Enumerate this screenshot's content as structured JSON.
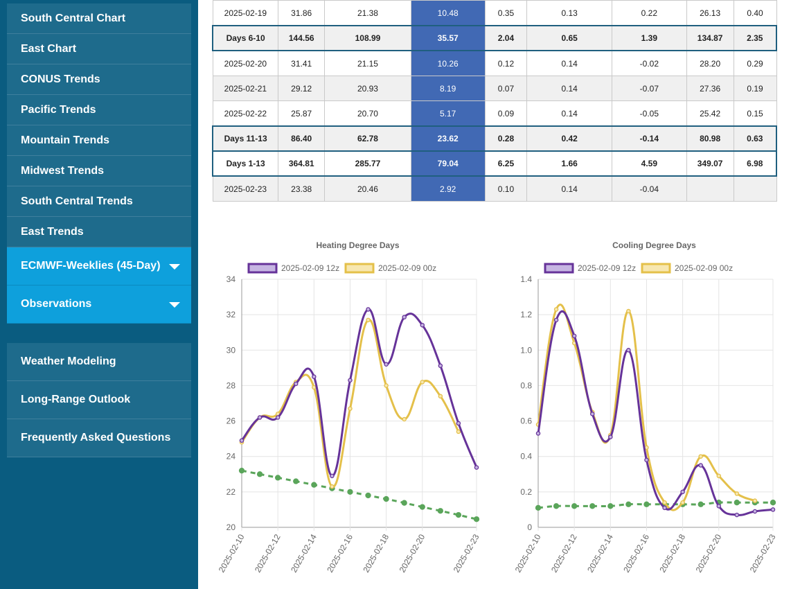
{
  "sidebar": {
    "items": [
      {
        "label": "South Central Chart"
      },
      {
        "label": "East Chart"
      },
      {
        "label": "CONUS Trends"
      },
      {
        "label": "Pacific Trends"
      },
      {
        "label": "Mountain Trends"
      },
      {
        "label": "Midwest Trends"
      },
      {
        "label": "South Central Trends"
      },
      {
        "label": "East Trends"
      },
      {
        "label": "ECMWF-Weeklies (45-Day)"
      },
      {
        "label": "Observations"
      }
    ],
    "bottom_items": [
      {
        "label": "Weather Modeling"
      },
      {
        "label": "Long-Range Outlook"
      },
      {
        "label": "Frequently Asked Questions"
      }
    ]
  },
  "table": {
    "rows": [
      {
        "kind": "odd",
        "cells": [
          "2025-02-19",
          "31.86",
          "21.38",
          "10.48",
          "0.35",
          "0.13",
          "0.22",
          "26.13",
          "0.40"
        ]
      },
      {
        "kind": "sum",
        "cells": [
          "Days 6-10",
          "144.56",
          "108.99",
          "35.57",
          "2.04",
          "0.65",
          "1.39",
          "134.87",
          "2.35"
        ]
      },
      {
        "kind": "odd",
        "cells": [
          "2025-02-20",
          "31.41",
          "21.15",
          "10.26",
          "0.12",
          "0.14",
          "-0.02",
          "28.20",
          "0.29"
        ]
      },
      {
        "kind": "even",
        "cells": [
          "2025-02-21",
          "29.12",
          "20.93",
          "8.19",
          "0.07",
          "0.14",
          "-0.07",
          "27.36",
          "0.19"
        ]
      },
      {
        "kind": "odd",
        "cells": [
          "2025-02-22",
          "25.87",
          "20.70",
          "5.17",
          "0.09",
          "0.14",
          "-0.05",
          "25.42",
          "0.15"
        ]
      },
      {
        "kind": "sum",
        "cells": [
          "Days 11-13",
          "86.40",
          "62.78",
          "23.62",
          "0.28",
          "0.42",
          "-0.14",
          "80.98",
          "0.63"
        ]
      },
      {
        "kind": "sum white",
        "cells": [
          "Days 1-13",
          "364.81",
          "285.77",
          "79.04",
          "6.25",
          "1.66",
          "4.59",
          "349.07",
          "6.98"
        ]
      },
      {
        "kind": "even",
        "cells": [
          "2025-02-23",
          "23.38",
          "20.46",
          "2.92",
          "0.10",
          "0.14",
          "-0.04",
          "",
          ""
        ]
      }
    ]
  },
  "colors": {
    "series_12z": "#663399",
    "series_12z_fill": "#c6b5e2",
    "series_00z": "#e4c04a",
    "series_00z_fill": "#f7e7b0",
    "normal": "#5aa55a",
    "highlight_column": "#4169b4",
    "sidebar_bg": "#0a5c80",
    "nav_item_bg": "#1e6b8c",
    "nav_item_active": "#0ea0dc"
  },
  "chart_data": [
    {
      "type": "line",
      "title": "Heating Degree Days",
      "x": [
        "2025-02-10",
        "2025-02-11",
        "2025-02-12",
        "2025-02-13",
        "2025-02-14",
        "2025-02-15",
        "2025-02-16",
        "2025-02-17",
        "2025-02-18",
        "2025-02-19",
        "2025-02-20",
        "2025-02-21",
        "2025-02-22",
        "2025-02-23"
      ],
      "xticks": [
        "2025-02-10",
        "2025-02-12",
        "2025-02-14",
        "2025-02-16",
        "2025-02-18",
        "2025-02-20",
        "2025-02-23"
      ],
      "ylim": [
        20,
        34
      ],
      "yticks": [
        "20",
        "22",
        "24",
        "26",
        "28",
        "30",
        "32",
        "34"
      ],
      "grid": true,
      "legend": "top",
      "series": [
        {
          "name": "2025-02-09 12z",
          "values": [
            24.9,
            26.2,
            26.2,
            28.1,
            28.5,
            22.9,
            28.3,
            32.3,
            29.2,
            31.86,
            31.41,
            29.12,
            25.87,
            23.38
          ]
        },
        {
          "name": "2025-02-09 00z",
          "values": [
            24.8,
            26.2,
            26.4,
            28.2,
            27.9,
            22.3,
            26.7,
            31.7,
            28.0,
            26.1,
            28.2,
            27.4,
            25.4,
            null
          ]
        },
        {
          "name": "",
          "dashed": true,
          "values": [
            23.2,
            23.0,
            22.8,
            22.6,
            22.4,
            22.2,
            22.0,
            21.8,
            21.6,
            21.38,
            21.15,
            20.93,
            20.7,
            20.46
          ]
        }
      ]
    },
    {
      "type": "line",
      "title": "Cooling Degree Days",
      "x": [
        "2025-02-10",
        "2025-02-11",
        "2025-02-12",
        "2025-02-13",
        "2025-02-14",
        "2025-02-15",
        "2025-02-16",
        "2025-02-17",
        "2025-02-18",
        "2025-02-19",
        "2025-02-20",
        "2025-02-21",
        "2025-02-22",
        "2025-02-23"
      ],
      "xticks": [
        "2025-02-10",
        "2025-02-12",
        "2025-02-14",
        "2025-02-16",
        "2025-02-18",
        "2025-02-20",
        "2025-02-23"
      ],
      "ylim": [
        0,
        1.4
      ],
      "yticks": [
        "0",
        "0.2",
        "0.4",
        "0.6",
        "0.8",
        "1.0",
        "1.2",
        "1.4"
      ],
      "grid": true,
      "legend": "top",
      "series": [
        {
          "name": "2025-02-09 12z",
          "values": [
            0.53,
            1.17,
            1.08,
            0.64,
            0.51,
            1.0,
            0.38,
            0.11,
            0.2,
            0.35,
            0.12,
            0.07,
            0.09,
            0.1
          ]
        },
        {
          "name": "2025-02-09 00z",
          "values": [
            0.58,
            1.23,
            1.04,
            0.65,
            0.52,
            1.22,
            0.45,
            0.14,
            0.14,
            0.4,
            0.29,
            0.19,
            0.15,
            null
          ]
        },
        {
          "name": "",
          "dashed": true,
          "values": [
            0.11,
            0.12,
            0.12,
            0.12,
            0.12,
            0.13,
            0.13,
            0.13,
            0.13,
            0.13,
            0.14,
            0.14,
            0.14,
            0.14
          ]
        }
      ]
    }
  ]
}
